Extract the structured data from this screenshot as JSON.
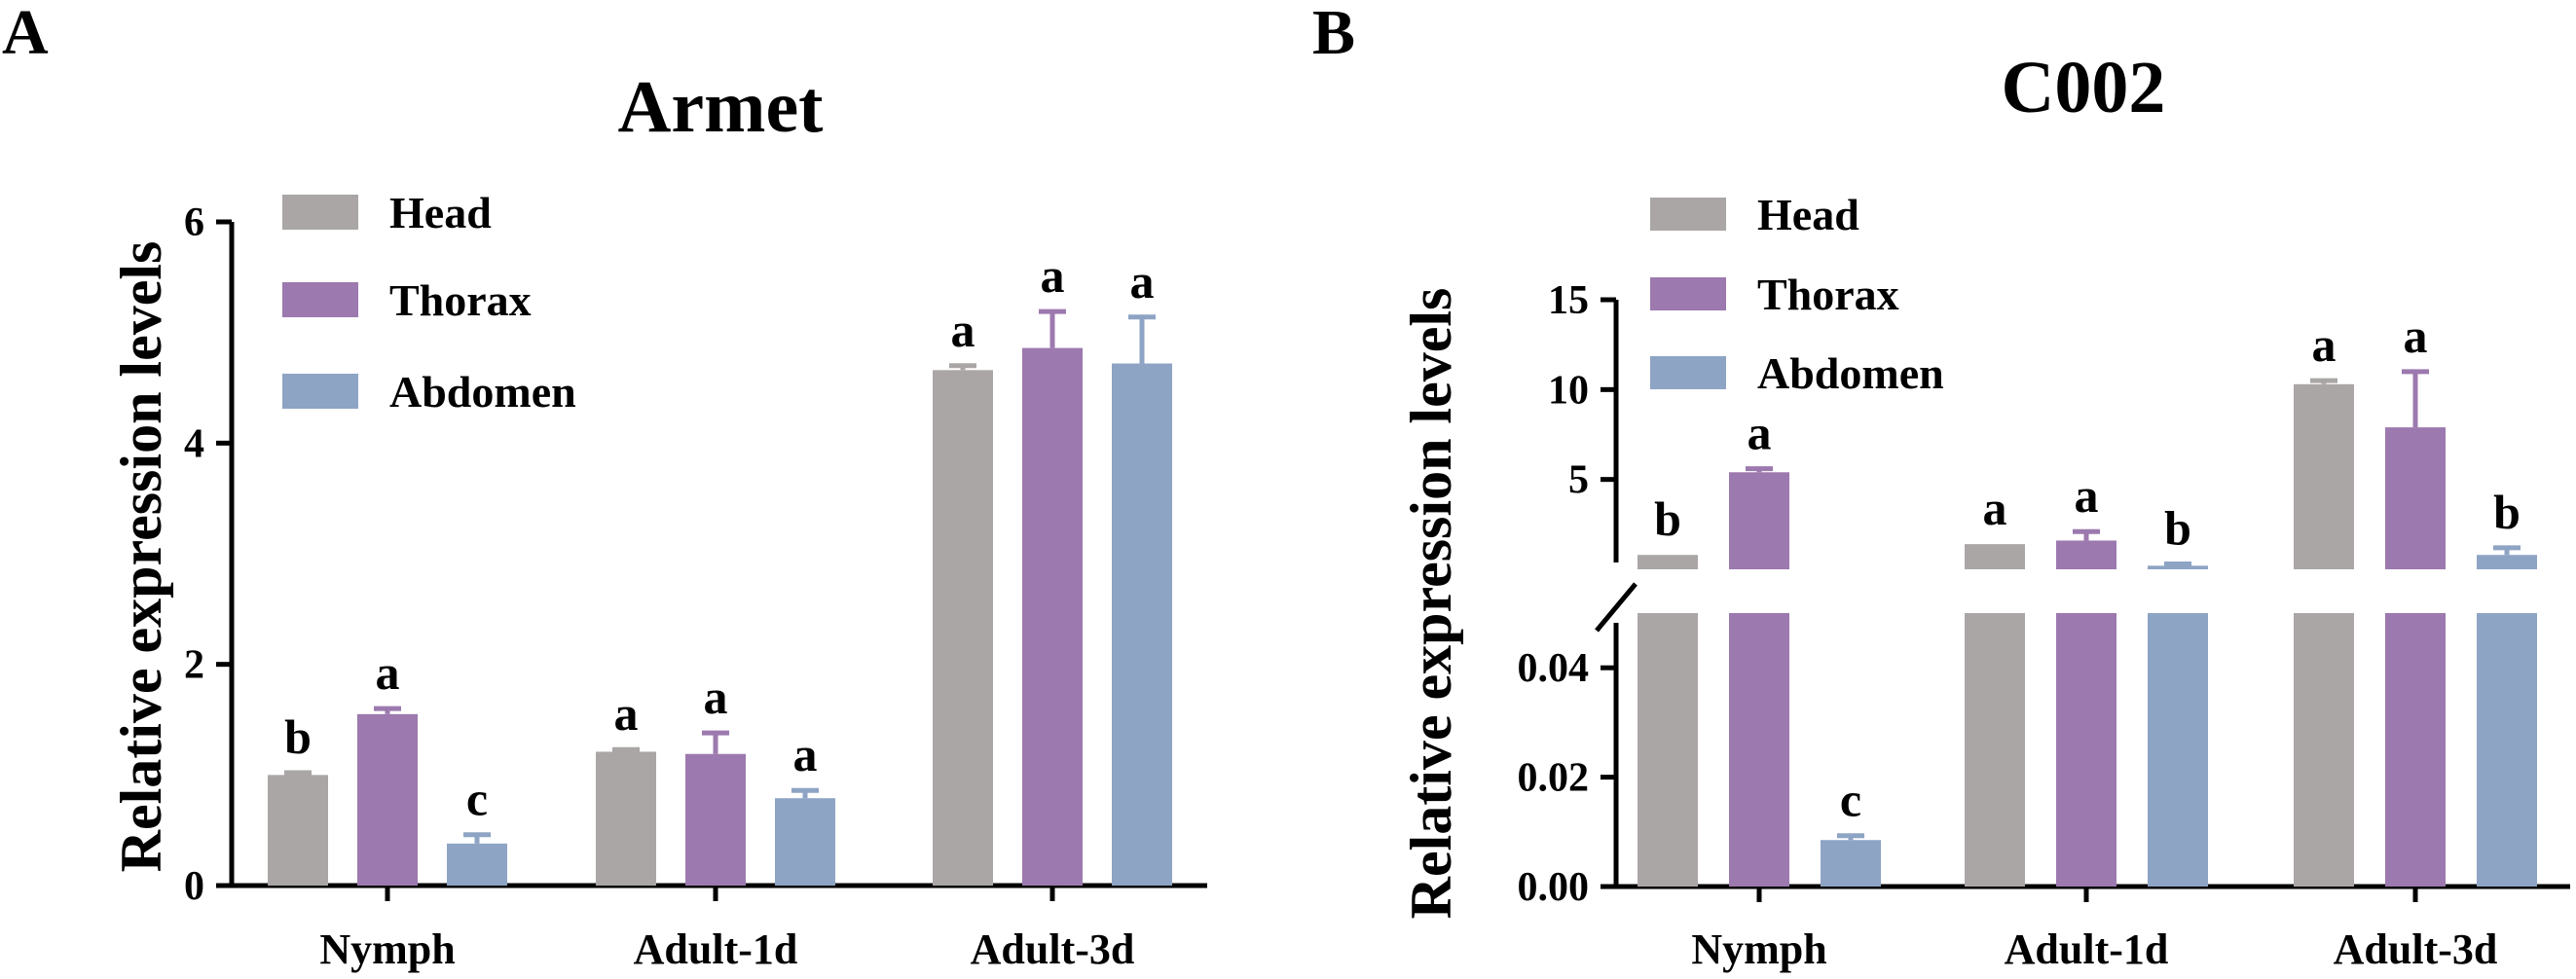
{
  "chart_data": [
    {
      "type": "bar",
      "panel": "A",
      "title": "Armet",
      "ylabel": "Relative expression levels",
      "xlabel": "",
      "categories": [
        "Nymph",
        "Adult-1d",
        "Adult-3d"
      ],
      "ylim": [
        0,
        6
      ],
      "yticks": [
        "0",
        "2",
        "4",
        "6"
      ],
      "legend_position": "top-left",
      "series": [
        {
          "name": "Head",
          "color": "#aba6a6",
          "values": [
            1.0,
            1.21,
            4.66
          ],
          "errors": [
            0.02,
            0.02,
            0.04
          ],
          "letters": [
            "b",
            "a",
            "a"
          ]
        },
        {
          "name": "Thorax",
          "color": "#9c79ae",
          "values": [
            1.55,
            1.19,
            4.86
          ],
          "errors": [
            0.05,
            0.19,
            0.33
          ],
          "letters": [
            "a",
            "a",
            "a"
          ]
        },
        {
          "name": "Abdomen",
          "color": "#8ea4c4",
          "values": [
            0.38,
            0.79,
            4.72
          ],
          "errors": [
            0.08,
            0.07,
            0.42
          ],
          "letters": [
            "c",
            "a",
            "a"
          ]
        }
      ]
    },
    {
      "type": "bar",
      "panel": "B",
      "title": "C002",
      "ylabel": "Relative expression levels",
      "xlabel": "",
      "categories": [
        "Nymph",
        "Adult-1d",
        "Adult-3d"
      ],
      "axis_break": true,
      "ylim_lower": [
        0,
        0.05
      ],
      "ylim_upper": [
        0,
        15
      ],
      "yticks_lower": [
        "0.00",
        "0.02",
        "0.04"
      ],
      "yticks_upper": [
        "5",
        "10",
        "15"
      ],
      "legend_position": "top-left",
      "series": [
        {
          "name": "Head",
          "color": "#aba6a6",
          "values": [
            0.8,
            1.4,
            10.3
          ],
          "errors": [
            0,
            0,
            0.2
          ],
          "letters": [
            "b",
            "a",
            "a"
          ]
        },
        {
          "name": "Thorax",
          "color": "#9c79ae",
          "values": [
            5.4,
            1.6,
            7.9
          ],
          "errors": [
            0.2,
            0.5,
            3.1
          ],
          "letters": [
            "a",
            "a",
            "a"
          ]
        },
        {
          "name": "Abdomen",
          "color": "#8ea4c4",
          "values": [
            0.0085,
            0.2,
            0.8
          ],
          "errors": [
            0.0008,
            0.1,
            0.4
          ],
          "letters": [
            "c",
            "b",
            "b"
          ]
        }
      ]
    }
  ]
}
